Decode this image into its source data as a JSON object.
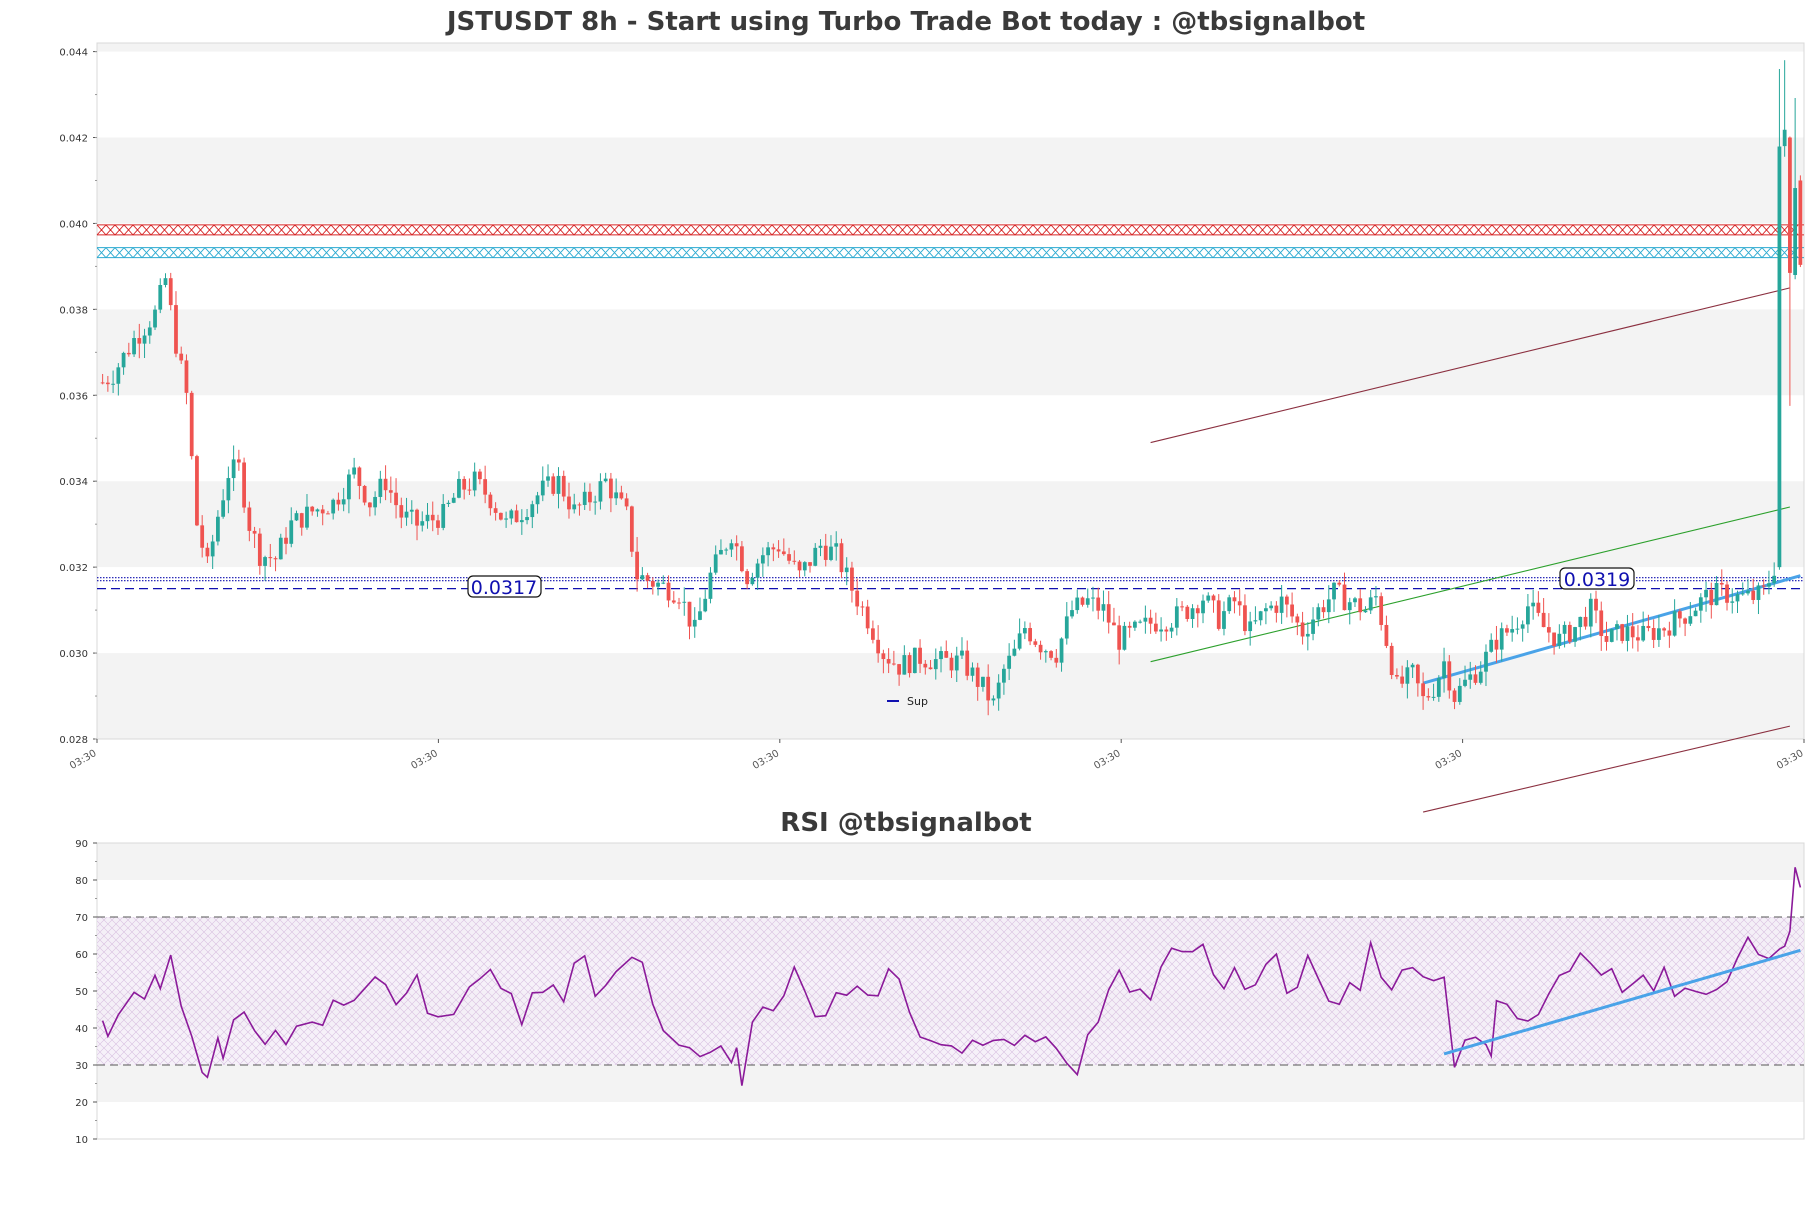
{
  "chart_data": [
    {
      "type": "candlestick",
      "title": "JSTUSDT 8h - Start using Turbo Trade Bot today : @tbsignalbot",
      "ylim": [
        0.028,
        0.0442
      ],
      "y_ticks": [
        "0.028",
        "0.030",
        "0.032",
        "0.034",
        "0.036",
        "0.038",
        "0.040",
        "0.042",
        "0.044"
      ],
      "x_ticks": [
        "03:30",
        "03:30",
        "03:30",
        "03:30",
        "03:30",
        "03:30"
      ],
      "levels": [
        {
          "name": "resistance-red",
          "value": 0.03985,
          "color": "#d62728"
        },
        {
          "name": "resistance-cyan",
          "value": 0.03932,
          "color": "#2aa9d0"
        }
      ],
      "support_lines": [
        {
          "name": "support-dotted",
          "value": 0.03172,
          "label": "0.0317",
          "color": "#1010b0"
        },
        {
          "name": "support-dashed",
          "value": 0.0315,
          "color": "#1010b0"
        }
      ],
      "price_tags": [
        "0.0317",
        "0.0319"
      ],
      "legend": [
        "Sup"
      ],
      "colors": {
        "up": "#26a69a",
        "down": "#ef5350",
        "band": "#f3f3f3"
      },
      "series_keyframes": [
        [
          0,
          0.0363
        ],
        [
          2,
          0.0365
        ],
        [
          6,
          0.0373
        ],
        [
          10,
          0.0379
        ],
        [
          12,
          0.0387
        ],
        [
          14,
          0.0372
        ],
        [
          16,
          0.036
        ],
        [
          18,
          0.033
        ],
        [
          20,
          0.032
        ],
        [
          22,
          0.0332
        ],
        [
          24,
          0.0342
        ],
        [
          26,
          0.0343
        ],
        [
          28,
          0.033
        ],
        [
          30,
          0.0323
        ],
        [
          33,
          0.0322
        ],
        [
          36,
          0.033
        ],
        [
          40,
          0.0333
        ],
        [
          44,
          0.0335
        ],
        [
          48,
          0.0342
        ],
        [
          51,
          0.0335
        ],
        [
          54,
          0.034
        ],
        [
          57,
          0.0332
        ],
        [
          60,
          0.033
        ],
        [
          65,
          0.0332
        ],
        [
          68,
          0.0338
        ],
        [
          71,
          0.034
        ],
        [
          74,
          0.0336
        ],
        [
          77,
          0.033
        ],
        [
          80,
          0.0333
        ],
        [
          84,
          0.0338
        ],
        [
          87,
          0.034
        ],
        [
          90,
          0.0333
        ],
        [
          93,
          0.0336
        ],
        [
          96,
          0.034
        ],
        [
          100,
          0.0332
        ],
        [
          102,
          0.0318
        ],
        [
          106,
          0.0316
        ],
        [
          110,
          0.0314
        ],
        [
          113,
          0.0305
        ],
        [
          116,
          0.0318
        ],
        [
          120,
          0.0328
        ],
        [
          123,
          0.0318
        ],
        [
          126,
          0.0323
        ],
        [
          129,
          0.0325
        ],
        [
          133,
          0.0318
        ],
        [
          137,
          0.0325
        ],
        [
          140,
          0.0323
        ],
        [
          143,
          0.0315
        ],
        [
          146,
          0.0308
        ],
        [
          149,
          0.03
        ],
        [
          152,
          0.0297
        ],
        [
          156,
          0.0299
        ],
        [
          160,
          0.0298
        ],
        [
          164,
          0.0298
        ],
        [
          168,
          0.0292
        ],
        [
          170,
          0.0288
        ],
        [
          172,
          0.0296
        ],
        [
          174,
          0.03
        ],
        [
          176,
          0.0306
        ],
        [
          179,
          0.0302
        ],
        [
          182,
          0.03
        ],
        [
          185,
          0.031
        ],
        [
          188,
          0.0312
        ],
        [
          191,
          0.031
        ],
        [
          194,
          0.0303
        ],
        [
          197,
          0.0305
        ],
        [
          200,
          0.0307
        ],
        [
          204,
          0.0308
        ],
        [
          207,
          0.031
        ],
        [
          210,
          0.0313
        ],
        [
          213,
          0.0308
        ],
        [
          216,
          0.0312
        ],
        [
          219,
          0.0305
        ],
        [
          222,
          0.031
        ],
        [
          225,
          0.0312
        ],
        [
          229,
          0.0305
        ],
        [
          232,
          0.031
        ],
        [
          235,
          0.0314
        ],
        [
          238,
          0.0312
        ],
        [
          241,
          0.031
        ],
        [
          243,
          0.0313
        ],
        [
          245,
          0.0303
        ],
        [
          247,
          0.0292
        ],
        [
          250,
          0.0295
        ],
        [
          252,
          0.0289
        ],
        [
          254,
          0.0292
        ],
        [
          256,
          0.0298
        ],
        [
          258,
          0.029
        ],
        [
          260,
          0.0293
        ],
        [
          263,
          0.0297
        ],
        [
          266,
          0.0303
        ],
        [
          269,
          0.0306
        ],
        [
          272,
          0.0311
        ],
        [
          275,
          0.0306
        ],
        [
          278,
          0.0303
        ],
        [
          281,
          0.0306
        ],
        [
          284,
          0.031
        ],
        [
          287,
          0.0303
        ],
        [
          290,
          0.0305
        ],
        [
          294,
          0.0304
        ],
        [
          298,
          0.0306
        ],
        [
          302,
          0.0309
        ],
        [
          306,
          0.0313
        ],
        [
          309,
          0.0314
        ],
        [
          312,
          0.0313
        ],
        [
          315,
          0.0313
        ],
        [
          317,
          0.0314
        ],
        [
          319,
          0.032
        ],
        [
          320,
          0.0418
        ],
        [
          321,
          0.042
        ],
        [
          322,
          0.0388
        ],
        [
          323,
          0.041
        ],
        [
          324,
          0.0393
        ]
      ],
      "candle_count": 325,
      "trendlines": [
        {
          "name": "upper-channel",
          "from": [
            200,
            0.0349
          ],
          "to": [
            322,
            0.0385
          ],
          "color": "#8b3040"
        },
        {
          "name": "lower-channel",
          "from": [
            252,
            0.0263
          ],
          "to": [
            322,
            0.0283
          ],
          "color": "#8b3040"
        },
        {
          "name": "green-trend",
          "from": [
            200,
            0.0298
          ],
          "to": [
            322,
            0.0334
          ],
          "color": "#2ca02c"
        },
        {
          "name": "blue-support",
          "from": [
            252,
            0.0293
          ],
          "to": [
            324,
            0.0318
          ],
          "color": "#4aa3e8"
        }
      ]
    },
    {
      "type": "line",
      "title": "RSI @tbsignalbot",
      "ylim": [
        10,
        90
      ],
      "y_ticks": [
        "10",
        "20",
        "30",
        "40",
        "50",
        "60",
        "70",
        "80",
        "90"
      ],
      "overbought": 70,
      "oversold": 30,
      "color": "#8b1a9a",
      "rsi_keyframes": [
        [
          0,
          42
        ],
        [
          1,
          38
        ],
        [
          3,
          44
        ],
        [
          6,
          49
        ],
        [
          8,
          48
        ],
        [
          10,
          54
        ],
        [
          11,
          51
        ],
        [
          13,
          59
        ],
        [
          15,
          46
        ],
        [
          17,
          38
        ],
        [
          19,
          28
        ],
        [
          20,
          26
        ],
        [
          22,
          37
        ],
        [
          23,
          32
        ],
        [
          25,
          42
        ],
        [
          27,
          44
        ],
        [
          29,
          40
        ],
        [
          31,
          35
        ],
        [
          33,
          39
        ],
        [
          35,
          35
        ],
        [
          37,
          41
        ],
        [
          40,
          42
        ],
        [
          42,
          41
        ],
        [
          44,
          47
        ],
        [
          46,
          46
        ],
        [
          48,
          47
        ],
        [
          52,
          54
        ],
        [
          54,
          52
        ],
        [
          56,
          46
        ],
        [
          58,
          50
        ],
        [
          60,
          54
        ],
        [
          62,
          44
        ],
        [
          64,
          43
        ],
        [
          67,
          44
        ],
        [
          70,
          51
        ],
        [
          72,
          54
        ],
        [
          74,
          56
        ],
        [
          76,
          51
        ],
        [
          78,
          50
        ],
        [
          80,
          41
        ],
        [
          82,
          50
        ],
        [
          84,
          49
        ],
        [
          86,
          51
        ],
        [
          88,
          47
        ],
        [
          90,
          58
        ],
        [
          92,
          60
        ],
        [
          94,
          48
        ],
        [
          96,
          52
        ],
        [
          98,
          55
        ],
        [
          101,
          59
        ],
        [
          103,
          58
        ],
        [
          105,
          46
        ],
        [
          107,
          40
        ],
        [
          110,
          36
        ],
        [
          112,
          34
        ],
        [
          114,
          32
        ],
        [
          116,
          33
        ],
        [
          118,
          35
        ],
        [
          120,
          30
        ],
        [
          121,
          34
        ],
        [
          122,
          25
        ],
        [
          124,
          42
        ],
        [
          126,
          45
        ],
        [
          128,
          44
        ],
        [
          130,
          48
        ],
        [
          132,
          57
        ],
        [
          134,
          50
        ],
        [
          136,
          43
        ],
        [
          138,
          44
        ],
        [
          140,
          50
        ],
        [
          142,
          49
        ],
        [
          144,
          52
        ],
        [
          146,
          49
        ],
        [
          148,
          48
        ],
        [
          150,
          56
        ],
        [
          152,
          53
        ],
        [
          154,
          44
        ],
        [
          156,
          37
        ],
        [
          158,
          37
        ],
        [
          160,
          35
        ],
        [
          162,
          35
        ],
        [
          164,
          33
        ],
        [
          166,
          36
        ],
        [
          168,
          36
        ],
        [
          170,
          37
        ],
        [
          172,
          37
        ],
        [
          174,
          35
        ],
        [
          176,
          38
        ],
        [
          178,
          36
        ],
        [
          180,
          37
        ],
        [
          182,
          34
        ],
        [
          184,
          31
        ],
        [
          186,
          28
        ],
        [
          188,
          38
        ],
        [
          190,
          42
        ],
        [
          192,
          50
        ],
        [
          194,
          56
        ],
        [
          196,
          50
        ],
        [
          198,
          51
        ],
        [
          200,
          48
        ],
        [
          202,
          56
        ],
        [
          204,
          61
        ],
        [
          206,
          60
        ],
        [
          208,
          61
        ],
        [
          210,
          63
        ],
        [
          212,
          54
        ],
        [
          214,
          50
        ],
        [
          216,
          56
        ],
        [
          218,
          51
        ],
        [
          220,
          52
        ],
        [
          222,
          57
        ],
        [
          224,
          60
        ],
        [
          226,
          49
        ],
        [
          228,
          51
        ],
        [
          230,
          60
        ],
        [
          232,
          53
        ],
        [
          234,
          47
        ],
        [
          236,
          46
        ],
        [
          238,
          52
        ],
        [
          240,
          50
        ],
        [
          242,
          63
        ],
        [
          244,
          53
        ],
        [
          246,
          50
        ],
        [
          248,
          55
        ],
        [
          250,
          57
        ],
        [
          252,
          54
        ],
        [
          254,
          53
        ],
        [
          256,
          54
        ],
        [
          258,
          30
        ],
        [
          260,
          37
        ],
        [
          262,
          38
        ],
        [
          264,
          36
        ],
        [
          265,
          33
        ],
        [
          266,
          48
        ],
        [
          268,
          47
        ],
        [
          270,
          43
        ],
        [
          272,
          42
        ],
        [
          274,
          44
        ],
        [
          276,
          50
        ],
        [
          278,
          54
        ],
        [
          280,
          56
        ],
        [
          282,
          61
        ],
        [
          284,
          58
        ],
        [
          286,
          55
        ],
        [
          288,
          56
        ],
        [
          290,
          50
        ],
        [
          292,
          52
        ],
        [
          294,
          55
        ],
        [
          296,
          50
        ],
        [
          298,
          56
        ],
        [
          300,
          48
        ],
        [
          302,
          51
        ],
        [
          304,
          50
        ],
        [
          306,
          49
        ],
        [
          308,
          51
        ],
        [
          310,
          52
        ],
        [
          312,
          59
        ],
        [
          314,
          65
        ],
        [
          316,
          60
        ],
        [
          318,
          58
        ],
        [
          320,
          62
        ],
        [
          321,
          62
        ],
        [
          322,
          66
        ],
        [
          323,
          84
        ],
        [
          324,
          78
        ]
      ],
      "trendline": {
        "from": [
          256,
          33
        ],
        "to": [
          324,
          61
        ],
        "color": "#4aa3e8"
      }
    }
  ]
}
